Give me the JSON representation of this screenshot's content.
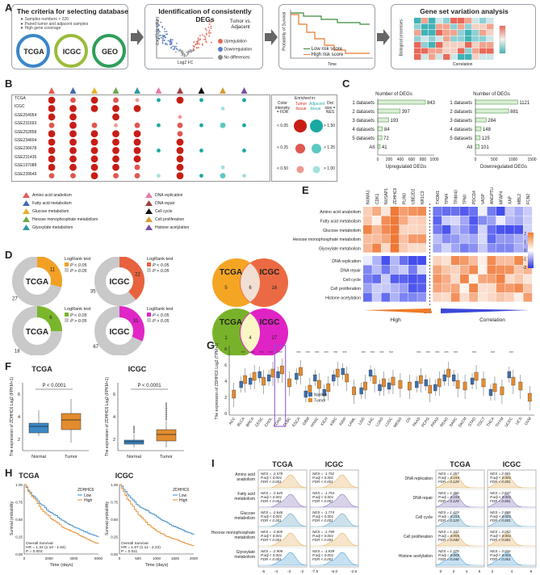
{
  "panels": {
    "A": "A",
    "B": "B",
    "C": "C",
    "D": "D",
    "E": "E",
    "F": "F",
    "G": "G",
    "H": "H",
    "I": "I"
  },
  "A": {
    "criteria_title": "The criteria for selecting database",
    "criteria": [
      "Samples numbers > 220",
      "Paired tumor and adjacent samples",
      "High gene coverage"
    ],
    "databases": [
      "TCGA",
      "ICGC",
      "GEO"
    ],
    "db_colors": [
      "#3a86c8",
      "#9bbb3c",
      "#2e9e5b"
    ],
    "volcano_title": "Identification of consistently DEGs",
    "volcano_ylabel": "-Log10 (p value)",
    "volcano_xlabel": "Log2 FC",
    "volcano_legend_title": "Tumor vs. Adjacent",
    "volcano_legend": [
      "Upregulation",
      "Downregulation",
      "No differences"
    ],
    "volcano_colors": [
      "#e36a5a",
      "#5b7fc4",
      "#888888"
    ],
    "km_ylabel": "Probability of Survival",
    "km_xlabel": "Time",
    "km_legend": [
      "Low risk score",
      "High risk score"
    ],
    "gsva_title": "Gene set variation analysis",
    "gsva_ylabel": "Biological processes",
    "gsva_xlabel": "Correlation"
  },
  "B": {
    "datasets": [
      "TCGA",
      "ICGC",
      "GSE254054",
      "GSE231693",
      "GSE252858",
      "GSE234604",
      "GSE236678",
      "GSE231436",
      "GSE197088",
      "GSE239649"
    ],
    "triangle_colors": [
      "#e45b4f",
      "#3d6bb3",
      "#e3b32a",
      "#6aa84f",
      "#2f9aa0",
      "#e47ba8",
      "#a04040",
      "#111111",
      "#d99a3a",
      "#7a4fa3"
    ],
    "legend_title_color": "Color intensity = FDR",
    "legend_enriched": "Enriched in:",
    "legend_tumor": "Tumor tissue",
    "legend_adjacent": "Adjacent tissue",
    "legend_dotsize": "Dot size = NES",
    "legend_rows": [
      {
        "fdr": "< 0.05",
        "nes": "> 1.50"
      },
      {
        "fdr": "< 0.25",
        "nes": "> 1.25"
      },
      {
        "fdr": "< 0.50",
        "nes": "> 1.00"
      }
    ],
    "pathways_left": [
      "Amino acid anabolism",
      "Fatty acid metabolism",
      "Glucose metabolism",
      "Hexose monophosphate metabolism",
      "Glyoxylate metabolism"
    ],
    "pathways_right": [
      "DNA replication",
      "DNA repair",
      "Cell cycle",
      "Cell proliferation",
      "Histone acetylation"
    ]
  },
  "C": {
    "categories": [
      "1 datasets",
      "2 datasets",
      "3 datasets",
      "4 datasets",
      "5 datasets",
      "All"
    ],
    "up_values": [
      843,
      397,
      193,
      84,
      72,
      41
    ],
    "down_values": [
      1121,
      881,
      284,
      148,
      125,
      101
    ],
    "up_axis_label": "Number of DEGs",
    "down_axis_label": "Number of DEGs",
    "up_ticks": [
      "0",
      "200",
      "400",
      "600",
      "800",
      "1000"
    ],
    "down_ticks": [
      "0",
      "500",
      "1000",
      "1500"
    ],
    "up_xlabel": "Upregulated DEGs",
    "down_xlabel": "Downregulated DEGs"
  },
  "D": {
    "donuts": [
      {
        "label": "TCGA",
        "sig": 11,
        "nonsig": 27,
        "color": "#f2a023"
      },
      {
        "label": "ICGC",
        "sig": 22,
        "nonsig": 35,
        "color": "#e8623e"
      },
      {
        "label": "TCGA",
        "sig": 6,
        "nonsig": 18,
        "color": "#79b62b"
      },
      {
        "label": "ICGC",
        "sig": 31,
        "nonsig": 67,
        "color": "#e026c6"
      }
    ],
    "logrank": "LogRank test",
    "p_sig": "P < 0.05",
    "p_nonsig": "P > 0.05",
    "venn1": {
      "left": "TCGA",
      "right": "ICGC",
      "a": 5,
      "ab": 6,
      "b": 16
    },
    "venn2": {
      "left": "TCGA",
      "right": "ICGC",
      "a": 1,
      "ab": 4,
      "b": 27
    }
  },
  "E": {
    "genes": [
      "NUMA1",
      "CDK1",
      "NUSAP1",
      "ZDHHC6",
      "PLIN3",
      "UBE2D2",
      "NR1C3",
      "TXDM1",
      "TPM4",
      "TRIM40",
      "TPMI",
      "PDCD4",
      "VASP",
      "ANGPTL6",
      "MFAP4",
      "XAP",
      "MBL2",
      "FCN2"
    ],
    "rows": [
      "Amino acid anabolism",
      "Fatty acid metabolism",
      "Glucose metabolism",
      "Hexose monophosphate metabolism",
      "Glyoxylate metabolism",
      "DNA replication",
      "DNA repair",
      "Cell cycle",
      "Cell proliferation",
      "Histone acetylation"
    ],
    "legend_ticks": [
      "2",
      "1",
      "0",
      "-1",
      "-2"
    ],
    "high_label": "High",
    "low_label": "Low",
    "corr_label": "Correlation"
  },
  "F": {
    "titles": [
      "TCGA",
      "ICGC"
    ],
    "pvals": [
      "P < 0.0001",
      "P < 0.0001"
    ],
    "ylabel": "The expression of ZDHHC6 Log2 (FPKM+1)",
    "xlabels": [
      "Normal",
      "Tumor"
    ],
    "yticks_tcga": [
      "6",
      "4",
      "2"
    ],
    "yticks_icgc": [
      "6",
      "4",
      "2"
    ]
  },
  "G": {
    "ylabel": "The expression of ZDHHC6 Log2 (TPM+1)",
    "legend": [
      "Normal",
      "Tumor"
    ],
    "cancers": [
      "ACC",
      "BLCA",
      "BRCA",
      "CESC",
      "CHOL",
      "COAD",
      "DLBC",
      "ESCA",
      "GBM",
      "HNSC",
      "KICH",
      "KIRC",
      "KIRP",
      "LAML",
      "LGG",
      "LIHC",
      "LUAD",
      "LUSC",
      "MESO",
      "OV",
      "PAAD",
      "PCPG",
      "PRAD",
      "READ",
      "SARC",
      "SKCM",
      "STAD",
      "TGCT",
      "THCA",
      "THYM",
      "UCEC",
      "UCS",
      "UVM"
    ],
    "yticks": [
      "8",
      "6",
      "4",
      "2",
      "0"
    ]
  },
  "H": {
    "titles": [
      "TCGA",
      "ICGC"
    ],
    "legend_title": "ZDHHC6",
    "legend": [
      "Low",
      "High"
    ],
    "ylabel": "Survival probability",
    "xlabel": "Time (days)",
    "stats": [
      {
        "os": "Overall Survival",
        "hr": "HR = 1.34 (1.10 - 1.84)",
        "p": "P = 0.003"
      },
      {
        "os": "Overall Survival",
        "hr": "HR = 1.57 (1.11 - 2.22)",
        "p": "P = 0.011"
      }
    ],
    "xticks_tcga": [
      "0",
      "2000",
      "4000",
      "6000"
    ],
    "xticks_icgc": [
      "0",
      "500",
      "1000",
      "1500",
      "2000"
    ],
    "yticks": [
      "1.00",
      "0.75",
      "0.50",
      "0.25",
      "0.00"
    ]
  },
  "I": {
    "col_titles": [
      "TCGA",
      "ICGC",
      "TCGA",
      "ICGC"
    ],
    "left_rows": [
      "Amino acid anabolism",
      "Fatty acid metabolism",
      "Glucose metabolism",
      "Hexose monophosphate metabolism",
      "Glyoxylate metabolism"
    ],
    "right_rows": [
      "DNA replication",
      "DNA repair",
      "Cell cycle",
      "Cell proliferation",
      "Histone acetylation"
    ],
    "stats_tcga_left": [
      [
        "NES = -2.578",
        "P.adj < 0.001",
        "FDR < 0.001"
      ],
      [
        "NES = -2.645",
        "P.adj < 0.001",
        "FDR < 0.001"
      ],
      [
        "NES = -2.646",
        "P.adj < 0.001",
        "FDR < 0.001"
      ],
      [
        "NES = -2.605",
        "P.adj < 0.001",
        "FDR < 0.001"
      ],
      [
        "NES = -2.906",
        "P.adj < 0.001",
        "FDR < 0.001"
      ]
    ],
    "stats_icgc_left": [
      [
        "NES = -1.752",
        "P.adj < 0.001",
        "FDR < 0.001"
      ],
      [
        "NES = -1.754",
        "P.adj < 0.001",
        "FDR < 0.001"
      ],
      [
        "NES = -1.774",
        "P.adj < 0.001",
        "FDR < 0.001"
      ],
      [
        "NES = -1.790",
        "P.adj < 0.001",
        "FDR < 0.001"
      ],
      [
        "NES = -1.839",
        "P.adj < 0.001",
        "FDR < 0.001"
      ]
    ],
    "stats_tcga_right": [
      [
        "NES = 1.357",
        "P.adj = 0.154",
        "FDR = 0.129"
      ],
      [
        "NES = 1.366",
        "P.adj = 0.154",
        "FDR = 0.129"
      ],
      [
        "NES = 1.419",
        "P.adj = 0.154",
        "FDR = 0.129"
      ],
      [
        "NES = 1.342",
        "P.adj = 0.055",
        "FDR = 0.048"
      ],
      [
        "NES = 1.376",
        "P.adj = 0.055",
        "FDR = 0.048"
      ]
    ],
    "stats_icgc_right": [
      [
        "NES = 2.901",
        "P.adj < 0.001",
        "FDR < 0.001"
      ],
      [
        "NES = 2.847",
        "P.adj < 0.001",
        "FDR < 0.001"
      ],
      [
        "NES = 2.868",
        "P.adj < 0.001",
        "FDR < 0.001"
      ],
      [
        "NES = 3.052",
        "P.adj < 0.001",
        "FDR < 0.001"
      ],
      [
        "NES = 3.044",
        "P.adj < 0.001",
        "FDR < 0.001"
      ]
    ],
    "xticks_left_tcga": [
      "-5",
      "-4",
      "-3",
      "-2"
    ],
    "xticks_left_icgc": [
      "-7.5",
      "-5.0",
      "-2.5"
    ],
    "xticks_right_tcga": [
      "0",
      "2",
      "4",
      "6"
    ],
    "xticks_right_icgc": [
      "2",
      "4",
      "6"
    ]
  }
}
